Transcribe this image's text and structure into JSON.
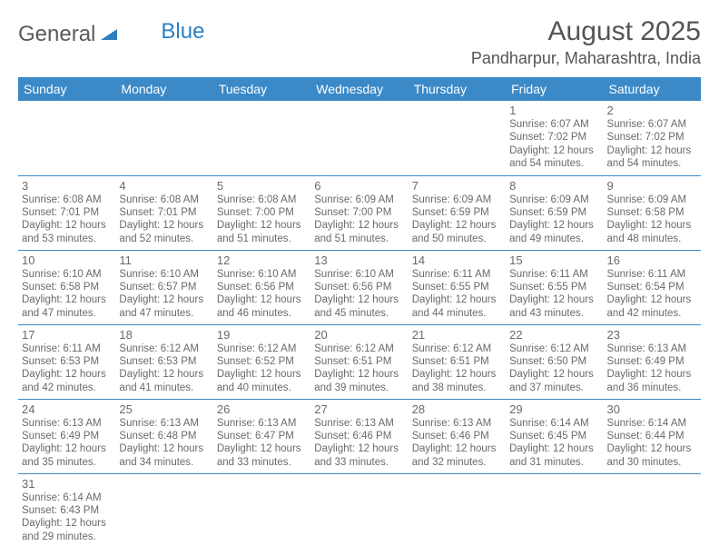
{
  "brand": {
    "part1": "General",
    "part2": "Blue"
  },
  "title": "August 2025",
  "location": "Pandharpur, Maharashtra, India",
  "colors": {
    "header_bg": "#3b89c7",
    "header_text": "#ffffff",
    "text": "#555555",
    "accent": "#2d7fc1",
    "grid_line": "#3b89c7"
  },
  "typography": {
    "title_fontsize": 30,
    "location_fontsize": 18,
    "weekday_fontsize": 14,
    "daynum_fontsize": 13,
    "body_fontsize": 11.5
  },
  "weekdays": [
    "Sunday",
    "Monday",
    "Tuesday",
    "Wednesday",
    "Thursday",
    "Friday",
    "Saturday"
  ],
  "days": [
    {
      "n": "1",
      "sr": "6:07 AM",
      "ss": "7:02 PM",
      "dl": "12 hours and 54 minutes."
    },
    {
      "n": "2",
      "sr": "6:07 AM",
      "ss": "7:02 PM",
      "dl": "12 hours and 54 minutes."
    },
    {
      "n": "3",
      "sr": "6:08 AM",
      "ss": "7:01 PM",
      "dl": "12 hours and 53 minutes."
    },
    {
      "n": "4",
      "sr": "6:08 AM",
      "ss": "7:01 PM",
      "dl": "12 hours and 52 minutes."
    },
    {
      "n": "5",
      "sr": "6:08 AM",
      "ss": "7:00 PM",
      "dl": "12 hours and 51 minutes."
    },
    {
      "n": "6",
      "sr": "6:09 AM",
      "ss": "7:00 PM",
      "dl": "12 hours and 51 minutes."
    },
    {
      "n": "7",
      "sr": "6:09 AM",
      "ss": "6:59 PM",
      "dl": "12 hours and 50 minutes."
    },
    {
      "n": "8",
      "sr": "6:09 AM",
      "ss": "6:59 PM",
      "dl": "12 hours and 49 minutes."
    },
    {
      "n": "9",
      "sr": "6:09 AM",
      "ss": "6:58 PM",
      "dl": "12 hours and 48 minutes."
    },
    {
      "n": "10",
      "sr": "6:10 AM",
      "ss": "6:58 PM",
      "dl": "12 hours and 47 minutes."
    },
    {
      "n": "11",
      "sr": "6:10 AM",
      "ss": "6:57 PM",
      "dl": "12 hours and 47 minutes."
    },
    {
      "n": "12",
      "sr": "6:10 AM",
      "ss": "6:56 PM",
      "dl": "12 hours and 46 minutes."
    },
    {
      "n": "13",
      "sr": "6:10 AM",
      "ss": "6:56 PM",
      "dl": "12 hours and 45 minutes."
    },
    {
      "n": "14",
      "sr": "6:11 AM",
      "ss": "6:55 PM",
      "dl": "12 hours and 44 minutes."
    },
    {
      "n": "15",
      "sr": "6:11 AM",
      "ss": "6:55 PM",
      "dl": "12 hours and 43 minutes."
    },
    {
      "n": "16",
      "sr": "6:11 AM",
      "ss": "6:54 PM",
      "dl": "12 hours and 42 minutes."
    },
    {
      "n": "17",
      "sr": "6:11 AM",
      "ss": "6:53 PM",
      "dl": "12 hours and 42 minutes."
    },
    {
      "n": "18",
      "sr": "6:12 AM",
      "ss": "6:53 PM",
      "dl": "12 hours and 41 minutes."
    },
    {
      "n": "19",
      "sr": "6:12 AM",
      "ss": "6:52 PM",
      "dl": "12 hours and 40 minutes."
    },
    {
      "n": "20",
      "sr": "6:12 AM",
      "ss": "6:51 PM",
      "dl": "12 hours and 39 minutes."
    },
    {
      "n": "21",
      "sr": "6:12 AM",
      "ss": "6:51 PM",
      "dl": "12 hours and 38 minutes."
    },
    {
      "n": "22",
      "sr": "6:12 AM",
      "ss": "6:50 PM",
      "dl": "12 hours and 37 minutes."
    },
    {
      "n": "23",
      "sr": "6:13 AM",
      "ss": "6:49 PM",
      "dl": "12 hours and 36 minutes."
    },
    {
      "n": "24",
      "sr": "6:13 AM",
      "ss": "6:49 PM",
      "dl": "12 hours and 35 minutes."
    },
    {
      "n": "25",
      "sr": "6:13 AM",
      "ss": "6:48 PM",
      "dl": "12 hours and 34 minutes."
    },
    {
      "n": "26",
      "sr": "6:13 AM",
      "ss": "6:47 PM",
      "dl": "12 hours and 33 minutes."
    },
    {
      "n": "27",
      "sr": "6:13 AM",
      "ss": "6:46 PM",
      "dl": "12 hours and 33 minutes."
    },
    {
      "n": "28",
      "sr": "6:13 AM",
      "ss": "6:46 PM",
      "dl": "12 hours and 32 minutes."
    },
    {
      "n": "29",
      "sr": "6:14 AM",
      "ss": "6:45 PM",
      "dl": "12 hours and 31 minutes."
    },
    {
      "n": "30",
      "sr": "6:14 AM",
      "ss": "6:44 PM",
      "dl": "12 hours and 30 minutes."
    },
    {
      "n": "31",
      "sr": "6:14 AM",
      "ss": "6:43 PM",
      "dl": "12 hours and 29 minutes."
    }
  ],
  "labels": {
    "sunrise_prefix": "Sunrise: ",
    "sunset_prefix": "Sunset: ",
    "daylight_prefix": "Daylight: "
  },
  "layout": {
    "first_weekday_index": 5,
    "columns": 7,
    "rows": 6
  }
}
